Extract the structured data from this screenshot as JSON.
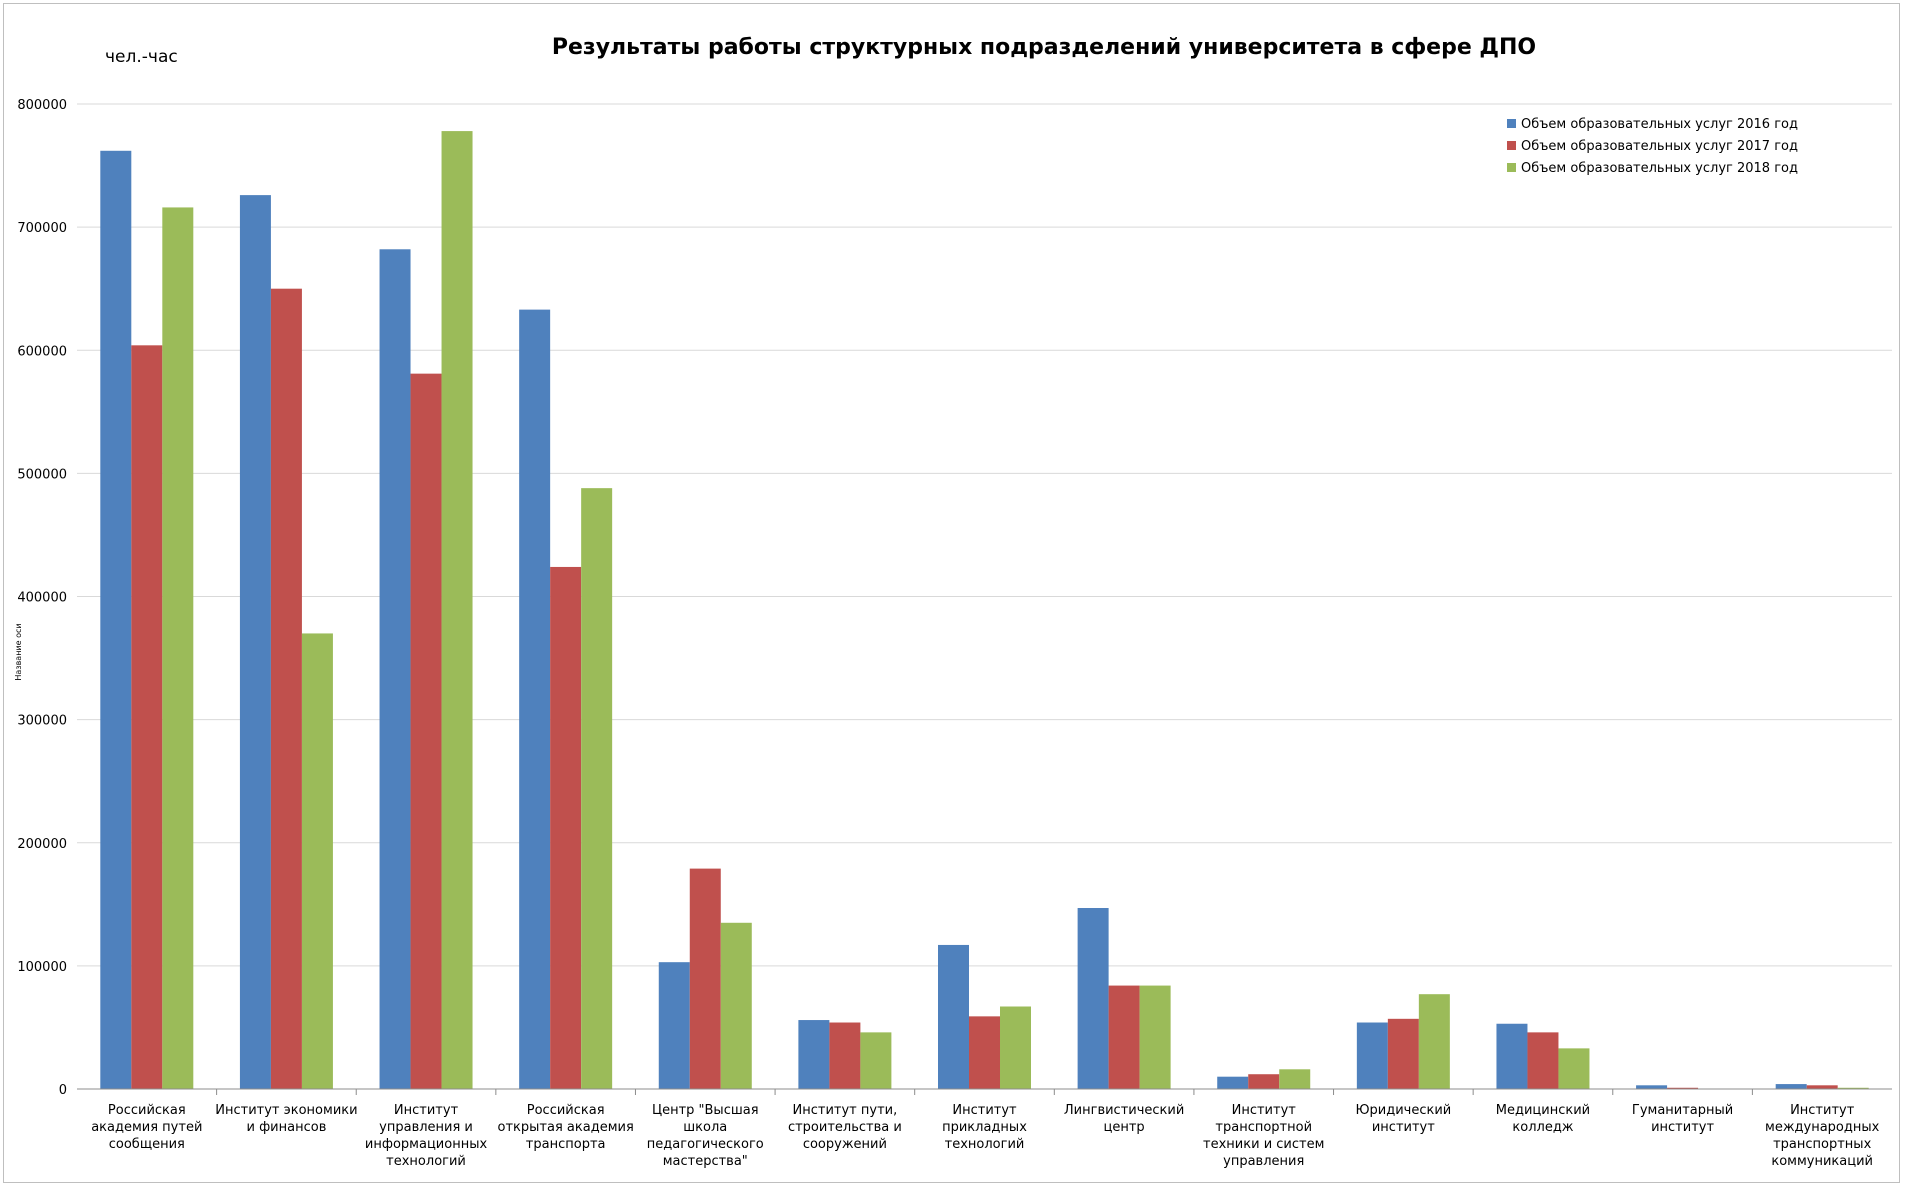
{
  "chart_data": {
    "type": "bar",
    "title": "Результаты работы структурных подразделений университета в сфере ДПО",
    "unit_label": "чел.-час",
    "ylabel": "Название оси",
    "xlabel": "",
    "ylim": [
      0,
      800000
    ],
    "yticks": [
      "0",
      "100000",
      "200000",
      "300000",
      "400000",
      "500000",
      "600000",
      "700000",
      "800000"
    ],
    "grid": true,
    "legend_position": "top-right",
    "categories": [
      [
        "Российская",
        "академия путей",
        "сообщения"
      ],
      [
        "Институт экономики",
        "и финансов"
      ],
      [
        "Институт",
        "управления и",
        "информационных",
        "технологий"
      ],
      [
        "Российская",
        "открытая академия",
        "транспорта"
      ],
      [
        "Центр \"Высшая",
        "школа",
        "педагогического",
        "мастерства\""
      ],
      [
        "Институт пути,",
        "строительства и",
        "сооружений"
      ],
      [
        "Институт",
        "прикладных",
        "технологий"
      ],
      [
        "Лингвистический",
        "центр"
      ],
      [
        "Институт",
        "транспортной",
        "техники и систем",
        "управления"
      ],
      [
        "Юридический",
        "институт"
      ],
      [
        "Медицинский",
        "колледж"
      ],
      [
        "Гуманитарный",
        "институт"
      ],
      [
        "Институт",
        "международных",
        "транспортных",
        "коммуникаций"
      ]
    ],
    "series": [
      {
        "name": "Объем образовательных услуг 2016 год",
        "color": "#4F81BD",
        "values": [
          762000,
          726000,
          682000,
          633000,
          103000,
          56000,
          117000,
          147000,
          10000,
          54000,
          53000,
          3000,
          4000
        ]
      },
      {
        "name": "Объем образовательных услуг 2017 год",
        "color": "#C0504D",
        "values": [
          604000,
          650000,
          581000,
          424000,
          179000,
          54000,
          59000,
          84000,
          12000,
          57000,
          46000,
          1000,
          3000
        ]
      },
      {
        "name": "Объем образовательных услуг 2018 год",
        "color": "#9BBB59",
        "values": [
          716000,
          370000,
          778000,
          488000,
          135000,
          46000,
          67000,
          84000,
          16000,
          77000,
          33000,
          0,
          1000
        ]
      }
    ]
  }
}
